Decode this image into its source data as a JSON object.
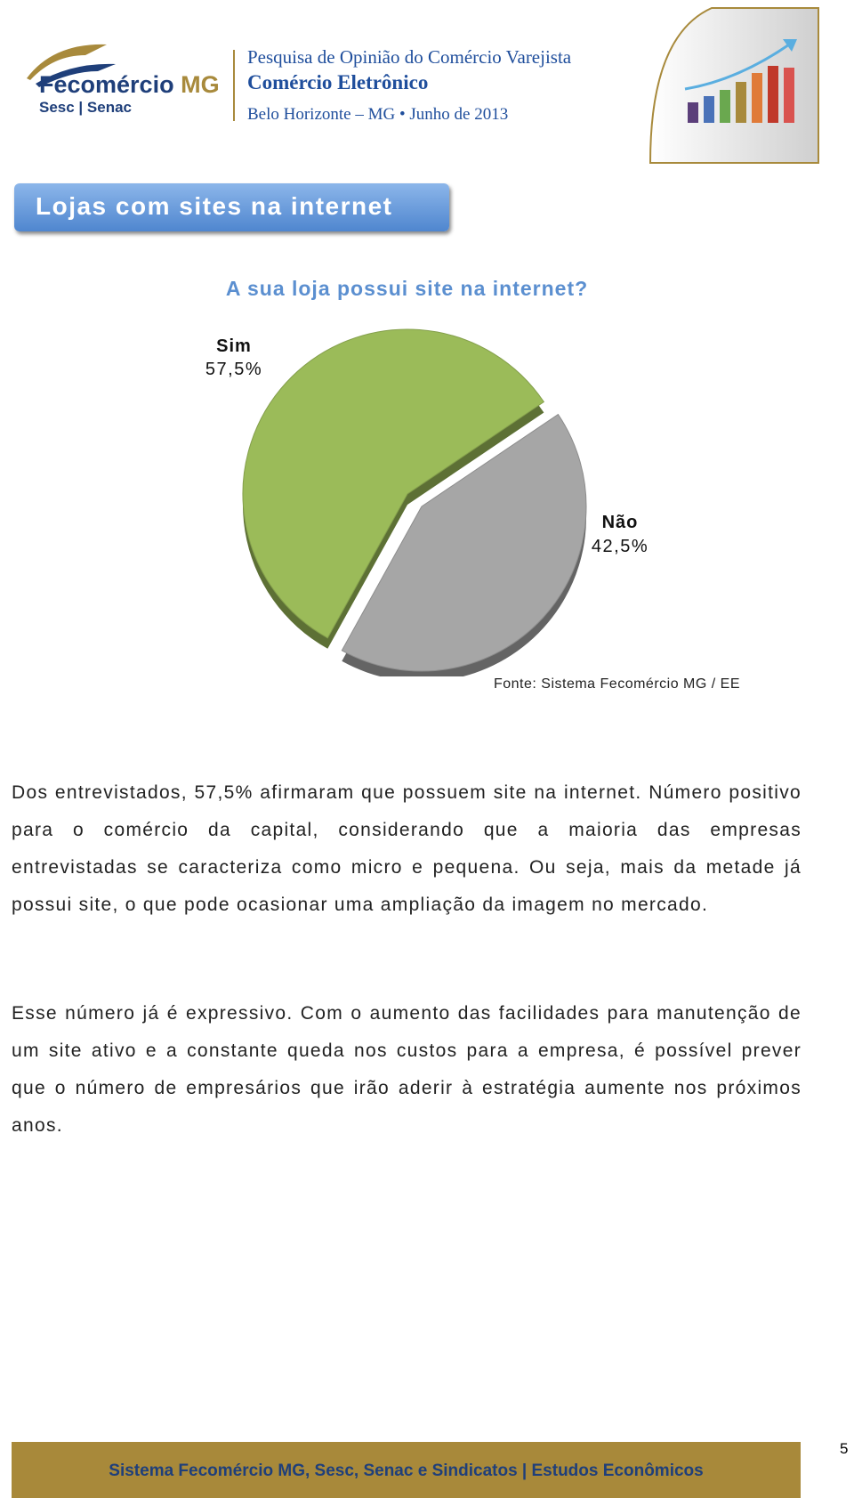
{
  "header": {
    "logo": {
      "name": "Fecomércio",
      "suffix": "MG",
      "sub": "Sesc | Senac"
    },
    "lines": [
      "Pesquisa de Opinião do Comércio Varejista",
      "Comércio Eletrônico",
      "Belo Horizonte – MG • Junho de 2013"
    ]
  },
  "section_title": "Lojas com sites na internet",
  "chart_data": {
    "type": "pie",
    "title": "A sua loja possui site na internet?",
    "categories": [
      "Sim",
      "Não"
    ],
    "values": [
      57.5,
      42.5
    ],
    "value_labels": [
      "57,5%",
      "42,5%"
    ],
    "colors": [
      "#9bbb59",
      "#a6a6a6"
    ],
    "source": "Fonte: Sistema Fecomércio MG / EE"
  },
  "paragraphs": [
    "Dos entrevistados, 57,5% afirmaram que possuem site na internet. Número positivo para o comércio da capital, considerando que a maioria das empresas entrevistadas se caracteriza como micro e pequena. Ou seja, mais da metade já possui site, o que pode ocasionar uma ampliação da imagem no mercado.",
    "Esse número já é expressivo. Com o aumento das facilidades para manutenção de um site ativo e a constante queda nos custos para a empresa, é possível prever que o número de empresários que irão aderir à estratégia aumente nos próximos anos."
  ],
  "footer": {
    "text": "Sistema Fecomércio MG, Sesc, Senac e Sindicatos | Estudos Econômicos",
    "page": "5"
  }
}
